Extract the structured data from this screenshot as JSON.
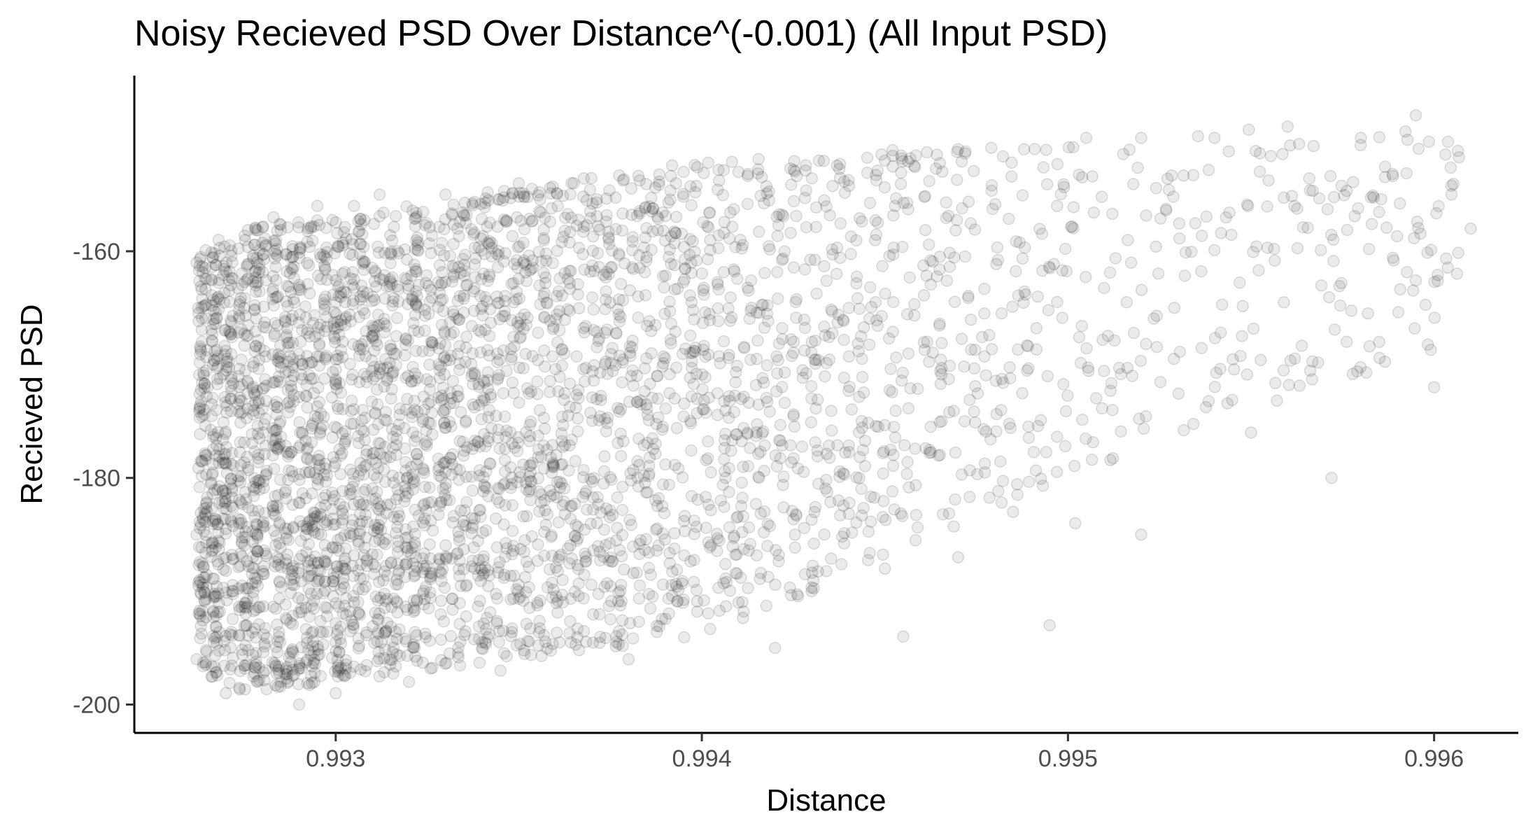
{
  "chart_data": {
    "type": "scatter",
    "title": "Noisy Recieved PSD Over Distance^(-0.001) (All Input PSD)",
    "xlabel": "Distance",
    "ylabel": "Recieved PSD",
    "xlim": [
      0.99245,
      0.99623
    ],
    "ylim": [
      -202.5,
      -144.5
    ],
    "x_ticks": [
      0.993,
      0.994,
      0.995,
      0.996
    ],
    "x_tick_labels": [
      "0.993",
      "0.994",
      "0.995",
      "0.996"
    ],
    "y_ticks": [
      -200,
      -180,
      -160
    ],
    "y_tick_labels": [
      "-200",
      "-180",
      "-160"
    ],
    "grid": false,
    "legend": "none",
    "point_color": "#000000",
    "point_alpha": 0.08,
    "point_shape": "circle",
    "points": [
      [
        0.99262,
        -161
      ],
      [
        0.99262,
        -185
      ],
      [
        0.99262,
        -196
      ],
      [
        0.99265,
        -172
      ],
      [
        0.99268,
        -159
      ],
      [
        0.9927,
        -199
      ],
      [
        0.99275,
        -165
      ],
      [
        0.99278,
        -158
      ],
      [
        0.99283,
        -157
      ],
      [
        0.99285,
        -198
      ],
      [
        0.9929,
        -200
      ],
      [
        0.99295,
        -156
      ],
      [
        0.993,
        -199
      ],
      [
        0.99305,
        -156
      ],
      [
        0.99312,
        -155
      ],
      [
        0.9932,
        -198
      ],
      [
        0.9933,
        -155
      ],
      [
        0.99345,
        -197
      ],
      [
        0.9935,
        -154
      ],
      [
        0.99365,
        -154
      ],
      [
        0.9938,
        -196
      ],
      [
        0.99395,
        -153
      ],
      [
        0.9941,
        -153
      ],
      [
        0.9942,
        -195
      ],
      [
        0.99432,
        -152
      ],
      [
        0.9945,
        -152
      ],
      [
        0.99455,
        -194
      ],
      [
        0.9947,
        -151
      ],
      [
        0.99488,
        -151
      ],
      [
        0.99495,
        -193
      ],
      [
        0.99505,
        -150
      ],
      [
        0.9952,
        -150
      ],
      [
        0.9954,
        -150
      ],
      [
        0.9956,
        -149
      ],
      [
        0.9958,
        -150
      ],
      [
        0.99595,
        -148
      ],
      [
        0.99585,
        -168
      ],
      [
        0.996,
        -172
      ],
      [
        0.9961,
        -158
      ],
      [
        0.99572,
        -180
      ],
      [
        0.9955,
        -176
      ],
      [
        0.9952,
        -185
      ],
      [
        0.99502,
        -184
      ],
      [
        0.99485,
        -183
      ],
      [
        0.9947,
        -187
      ],
      [
        0.9945,
        -188
      ],
      [
        0.9943,
        -190
      ],
      [
        0.9941,
        -191
      ]
    ],
    "density_bands": [
      {
        "x_start": 0.99262,
        "x_end": 0.99275,
        "y_low_start": -197,
        "y_low_end": -199,
        "y_high_start": -160,
        "y_high_end": -159
      },
      {
        "x_start": 0.99275,
        "x_end": 0.994,
        "y_low_start": -199,
        "y_low_end": -194,
        "y_high_start": -158,
        "y_high_end": -152
      },
      {
        "x_start": 0.994,
        "x_end": 0.9948,
        "y_low_start": -194,
        "y_low_end": -183,
        "y_high_start": -152,
        "y_high_end": -150
      },
      {
        "x_start": 0.9948,
        "x_end": 0.9953,
        "y_low_start": -183,
        "y_low_end": -177,
        "y_high_start": -150,
        "y_high_end": -149
      },
      {
        "x_start": 0.9953,
        "x_end": 0.99565,
        "y_low_start": -176,
        "y_low_end": -173,
        "y_high_start": -149,
        "y_high_end": -148
      },
      {
        "x_start": 0.99565,
        "x_end": 0.99608,
        "y_low_start": -173,
        "y_low_end": -168,
        "y_high_start": -148,
        "y_high_end": -150
      }
    ]
  }
}
